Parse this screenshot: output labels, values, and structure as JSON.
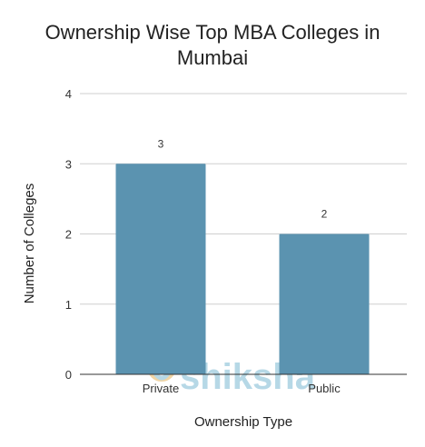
{
  "watermark": "shiksha",
  "colors": {
    "bar": "#5b93b0",
    "grid": "#cfcfcf",
    "axis": "#333333",
    "watermark": "#5ea9c9"
  },
  "chart_data": {
    "type": "bar",
    "title": "Ownership Wise Top MBA Colleges in Mumbai",
    "xlabel": "Ownership Type",
    "ylabel": "Number of Colleges",
    "categories": [
      "Private",
      "Public"
    ],
    "values": [
      3,
      2
    ],
    "data_labels": [
      "3",
      "2"
    ],
    "ylim": [
      0,
      4
    ],
    "yticks": [
      0,
      1,
      2,
      3,
      4
    ],
    "grid": true,
    "legend": "none"
  }
}
